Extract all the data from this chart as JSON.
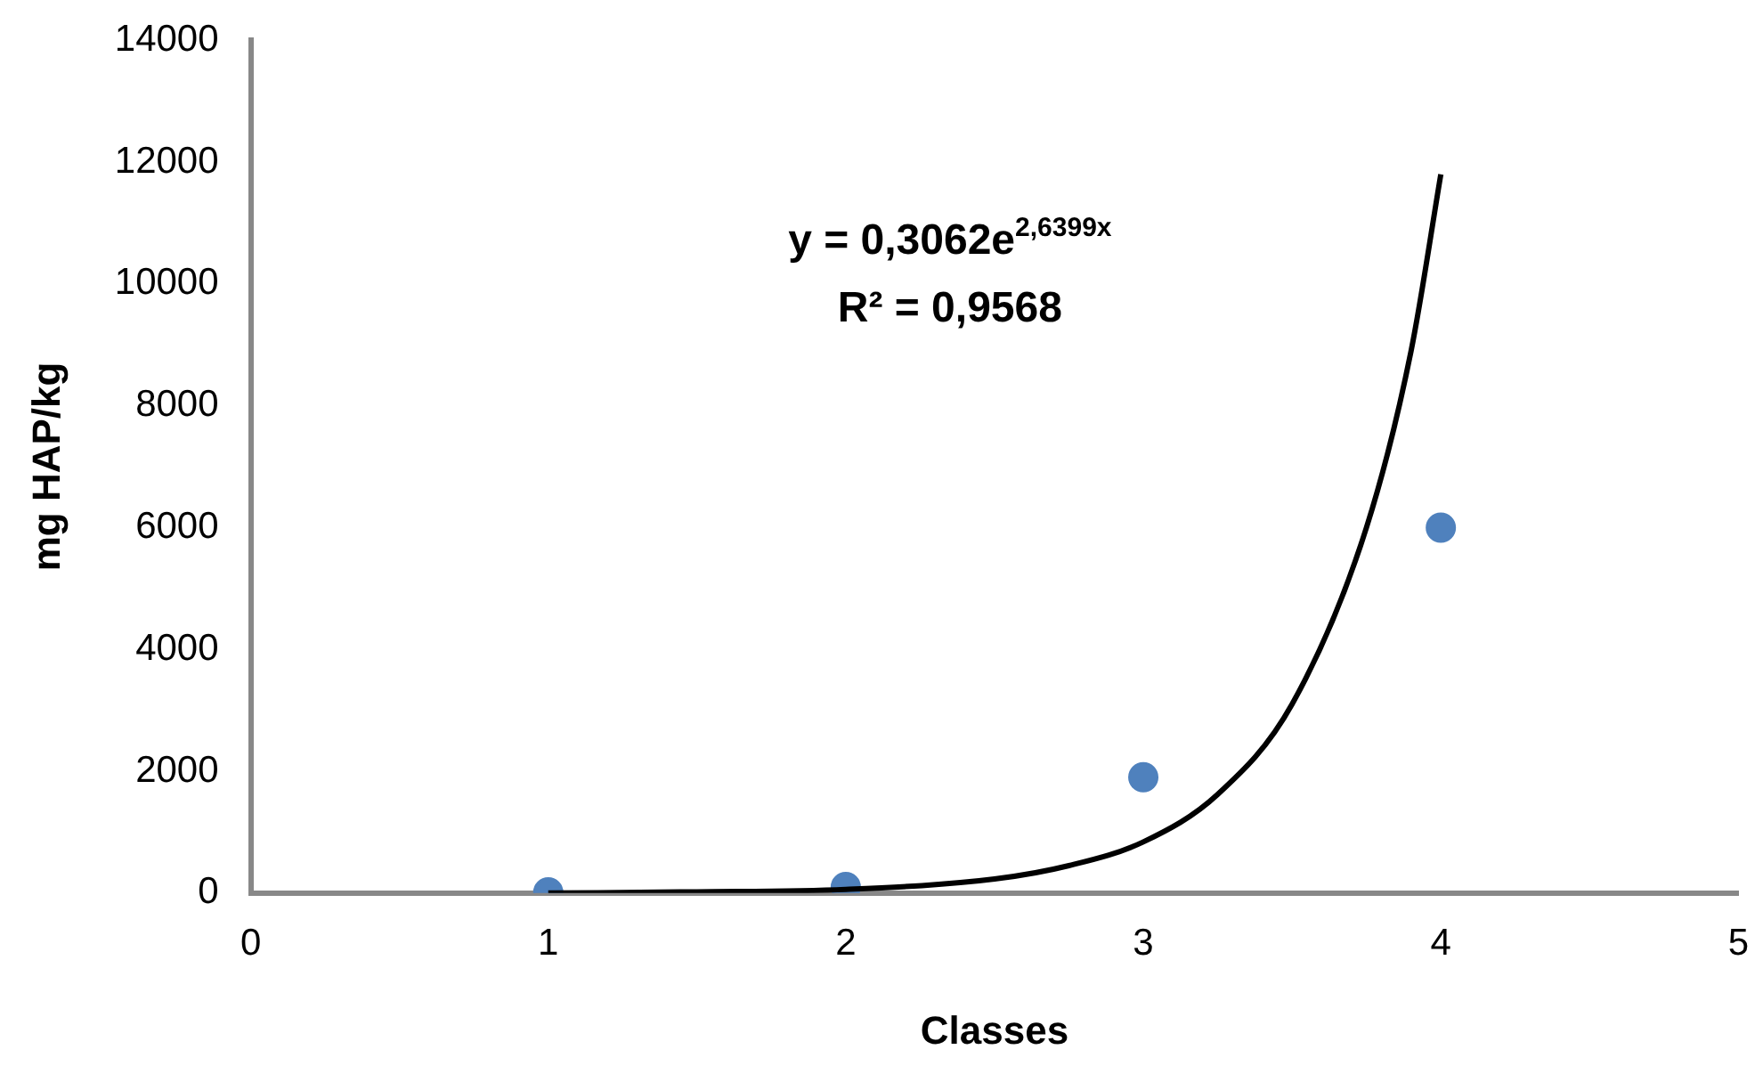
{
  "chart_data": {
    "type": "scatter",
    "xlabel": "Classes",
    "ylabel": "mg HAP/kg",
    "x": [
      1,
      2,
      3,
      4
    ],
    "xlim": [
      0,
      5
    ],
    "xticks": [
      0,
      1,
      2,
      3,
      4,
      5
    ],
    "ylim": [
      0,
      14000
    ],
    "yticks": [
      0,
      2000,
      4000,
      6000,
      8000,
      10000,
      12000,
      14000
    ],
    "grid": false,
    "legend": false,
    "marker": "circle",
    "series": [
      {
        "color": "#4f81bd",
        "values": [
          10,
          100,
          1900,
          6000
        ]
      },
      {
        "type": "line",
        "color": "#000000",
        "marker": "none",
        "x": [
          1,
          1.5,
          2,
          2.5,
          2.75,
          3,
          3.25,
          3.5,
          3.75,
          3.9,
          4
        ],
        "values": [
          0,
          20,
          60,
          230,
          450,
          840,
          1620,
          3100,
          6000,
          8900,
          11800
        ]
      }
    ],
    "annotations": [
      "y = 0,3062e$^{2,6399x}$",
      "R² = 0,9568"
    ]
  }
}
